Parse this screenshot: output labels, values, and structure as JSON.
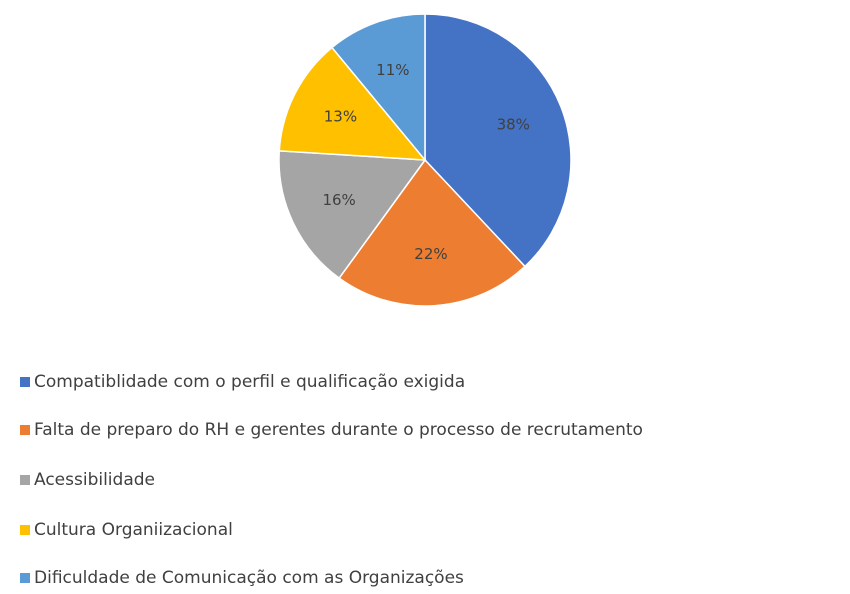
{
  "chart_data": {
    "type": "pie",
    "categories": [
      "Compatiblidade com o perfil e qualificação exigida",
      "Falta de preparo do RH e gerentes durante o processo de recrutamento",
      "Acessibilidade",
      "Cultura Organiizacional",
      "Dificuldade de Comunicação com as Organizações"
    ],
    "values": [
      38,
      22,
      16,
      13,
      11
    ],
    "value_labels": [
      "38%",
      "22%",
      "16%",
      "13%",
      "11%"
    ],
    "colors": [
      "#4472c4",
      "#ed7d31",
      "#a5a5a5",
      "#ffc000",
      "#5b9bd5"
    ]
  }
}
